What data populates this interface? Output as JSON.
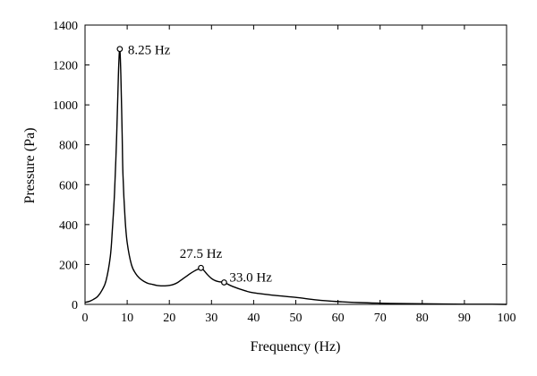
{
  "chart_data": {
    "type": "line",
    "title": "",
    "xlabel": "Frequency (Hz)",
    "ylabel": "Pressure (Pa)",
    "xlim": [
      0,
      100
    ],
    "ylim": [
      0,
      1400
    ],
    "xticks": [
      0,
      10,
      20,
      30,
      40,
      50,
      60,
      70,
      80,
      90,
      100
    ],
    "yticks": [
      0,
      200,
      400,
      600,
      800,
      1000,
      1200,
      1400
    ],
    "grid": false,
    "legend": "none",
    "series": [
      {
        "x": [
          0,
          1,
          2,
          3,
          4,
          5,
          6,
          6.5,
          7,
          7.5,
          7.8,
          8.0,
          8.25,
          8.5,
          8.8,
          9.0,
          9.5,
          10,
          11,
          12,
          13,
          14,
          15,
          16,
          17,
          18,
          19,
          20,
          21,
          22,
          23,
          24,
          25,
          26,
          27,
          27.5,
          28,
          29,
          30,
          31,
          32,
          33,
          35,
          38,
          40,
          45,
          50,
          55,
          60,
          65,
          70,
          75,
          80,
          85,
          90,
          95,
          100
        ],
        "y": [
          10,
          15,
          25,
          40,
          70,
          120,
          240,
          380,
          560,
          840,
          1060,
          1200,
          1280,
          1150,
          860,
          650,
          430,
          310,
          200,
          155,
          130,
          115,
          105,
          100,
          95,
          93,
          93,
          95,
          100,
          110,
          125,
          140,
          155,
          168,
          178,
          183,
          175,
          150,
          130,
          118,
          113,
          110,
          90,
          68,
          58,
          45,
          35,
          22,
          14,
          9,
          6,
          4,
          3,
          2,
          1,
          1,
          0
        ]
      }
    ],
    "annotations": [
      {
        "x": 8.25,
        "y": 1280,
        "label": "8.25 Hz"
      },
      {
        "x": 27.5,
        "y": 183,
        "label": "27.5 Hz"
      },
      {
        "x": 33.0,
        "y": 110,
        "label": "33.0 Hz"
      }
    ]
  }
}
